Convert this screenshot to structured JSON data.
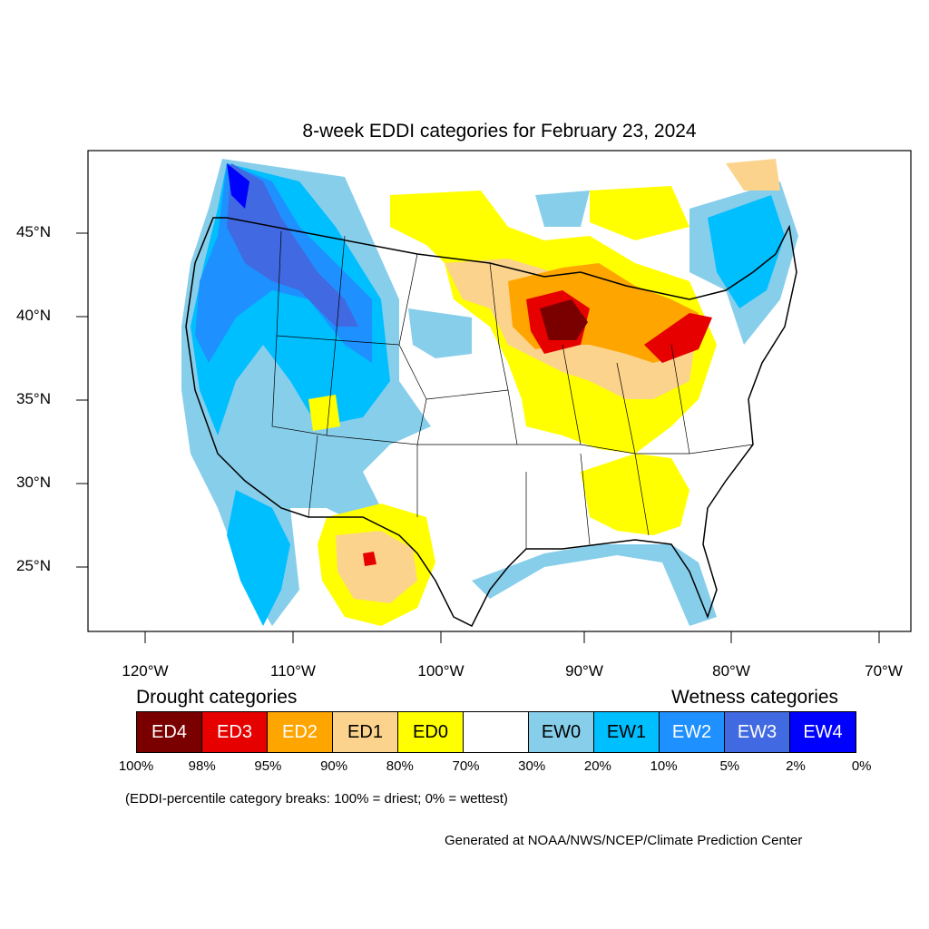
{
  "title": "8-week EDDI categories for February 23, 2024",
  "latitude_labels": [
    "45°N",
    "40°N",
    "35°N",
    "30°N",
    "25°N"
  ],
  "longitude_labels": [
    "120°W",
    "110°W",
    "100°W",
    "90°W",
    "80°W",
    "70°W"
  ],
  "drought_title": "Drought categories",
  "wetness_title": "Wetness categories",
  "legend": [
    {
      "label": "ED4",
      "color": "#7a0000",
      "text_color": "#ffffff"
    },
    {
      "label": "ED3",
      "color": "#e60000",
      "text_color": "#ffffff"
    },
    {
      "label": "ED2",
      "color": "#ffa500",
      "text_color": "#ffffff"
    },
    {
      "label": "ED1",
      "color": "#fcd38c",
      "text_color": "#000000"
    },
    {
      "label": "ED0",
      "color": "#ffff00",
      "text_color": "#000000"
    },
    {
      "label": "",
      "color": "#ffffff",
      "text_color": "#000000"
    },
    {
      "label": "EW0",
      "color": "#87ceeb",
      "text_color": "#000000"
    },
    {
      "label": "EW1",
      "color": "#00bfff",
      "text_color": "#000000"
    },
    {
      "label": "EW2",
      "color": "#1e90ff",
      "text_color": "#ffffff"
    },
    {
      "label": "EW3",
      "color": "#4169e1",
      "text_color": "#ffffff"
    },
    {
      "label": "EW4",
      "color": "#0000ff",
      "text_color": "#ffffff"
    }
  ],
  "percent_labels": [
    "100%",
    "98%",
    "95%",
    "90%",
    "80%",
    "70%",
    "30%",
    "20%",
    "10%",
    "5%",
    "2%",
    "0%"
  ],
  "note": "(EDDI-percentile category breaks: 100% = driest; 0% = wettest)",
  "credit": "Generated at NOAA/NWS/NCEP/Climate Prediction Center"
}
